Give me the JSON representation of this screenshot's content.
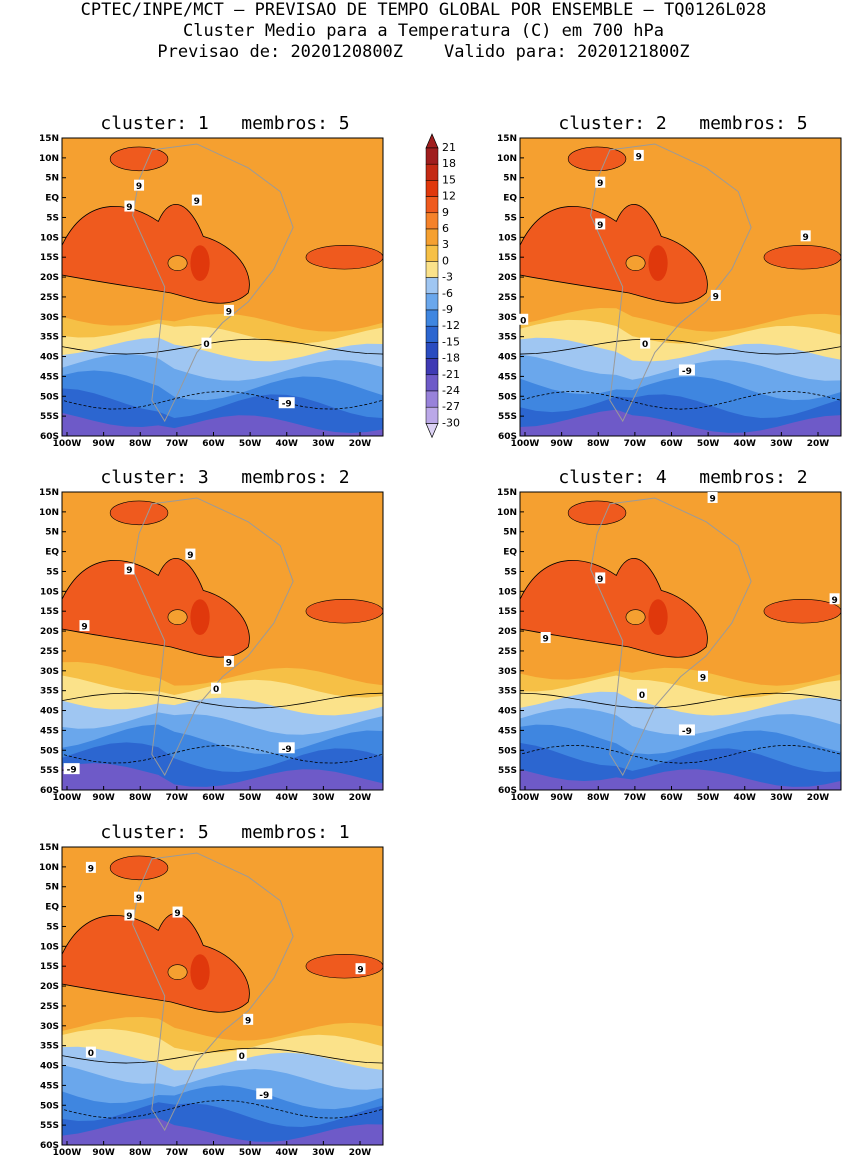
{
  "header": {
    "line1": "CPTEC/INPE/MCT – PREVISAO DE TEMPO GLOBAL POR ENSEMBLE – TQ0126L028",
    "line2": "Cluster Medio para a Temperatura (C) em 700 hPa",
    "line3": "Previsao de: 2020120800Z    Valido para: 2020121800Z"
  },
  "panels": [
    {
      "title": "cluster: 1   membros: 5",
      "labels": [
        {
          "t": "9"
        },
        {
          "t": "9"
        },
        {
          "t": "9"
        },
        {
          "t": "9"
        },
        {
          "t": "0"
        },
        {
          "t": "-9"
        }
      ]
    },
    {
      "title": "cluster: 2   membros: 5",
      "labels": [
        {
          "t": "9"
        },
        {
          "t": "9"
        },
        {
          "t": "9"
        },
        {
          "t": "9"
        },
        {
          "t": "9"
        },
        {
          "t": "0"
        },
        {
          "t": "0"
        },
        {
          "t": "-9"
        }
      ]
    },
    {
      "title": "cluster: 3   membros: 2",
      "labels": [
        {
          "t": "9"
        },
        {
          "t": "9"
        },
        {
          "t": "9"
        },
        {
          "t": "9"
        },
        {
          "t": "0"
        },
        {
          "t": "-9"
        },
        {
          "t": "-9"
        }
      ]
    },
    {
      "title": "cluster: 4   membros: 2",
      "labels": [
        {
          "t": "9"
        },
        {
          "t": "9"
        },
        {
          "t": "9"
        },
        {
          "t": "9"
        },
        {
          "t": "9"
        },
        {
          "t": "0"
        },
        {
          "t": "-9"
        }
      ]
    },
    {
      "title": "cluster: 5   membros: 1",
      "labels": [
        {
          "t": "9"
        },
        {
          "t": "9"
        },
        {
          "t": "9"
        },
        {
          "t": "9"
        },
        {
          "t": "9"
        },
        {
          "t": "9"
        },
        {
          "t": "0"
        },
        {
          "t": "0"
        },
        {
          "t": "-9"
        }
      ]
    }
  ],
  "lat_labels": [
    "15N",
    "10N",
    "5N",
    "EQ",
    "5S",
    "10S",
    "15S",
    "20S",
    "25S",
    "30S",
    "35S",
    "40S",
    "45S",
    "50S",
    "55S",
    "60S"
  ],
  "lon_labels": [
    "100W",
    "90W",
    "80W",
    "70W",
    "60W",
    "50W",
    "40W",
    "30W",
    "20W"
  ],
  "legend": {
    "labels": [
      "21",
      "18",
      "15",
      "12",
      "9",
      "6",
      "3",
      "0",
      "-3",
      "-6",
      "-9",
      "-12",
      "-15",
      "-18",
      "-21",
      "-24",
      "-27",
      "-30"
    ],
    "colors": [
      "#a01e1e",
      "#c42a14",
      "#e0380c",
      "#ef5a1e",
      "#f5822a",
      "#f5a030",
      "#f6c046",
      "#fbe28a",
      "#9fc6f2",
      "#6aa7ec",
      "#3f86e0",
      "#2c66d0",
      "#2a4cc0",
      "#3f3ab4",
      "#6e5ac8",
      "#9882da",
      "#bba8e8",
      "#dcd2f4"
    ]
  },
  "colors": {
    "orange": "#f5a030",
    "dark_orange": "#ef5a1e",
    "red": "#e0380c",
    "yellow": "#fbe28a",
    "light_orange": "#f6c046",
    "light_blue": "#9fc6f2",
    "mid_blue": "#6aa7ec",
    "blue": "#3f86e0",
    "deep_blue": "#2c66d0",
    "navy": "#2a4cc0",
    "purple": "#6e5ac8",
    "land_outline": "#9a9a9a"
  }
}
